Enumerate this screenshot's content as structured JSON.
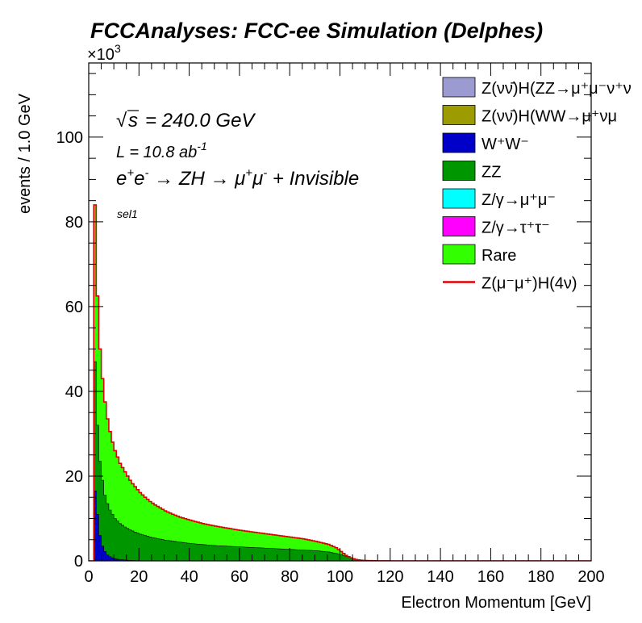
{
  "page": {
    "title": "FCCAnalyses: FCC-ee Simulation (Delphes)"
  },
  "annotations": {
    "sqrt_s": "= 240.0 GeV",
    "lumi": "L = 10.8 ab",
    "lumi_exp": "-1",
    "selection": "sel1",
    "exponent_base": "×10",
    "exponent_power": "3"
  },
  "chart_data": {
    "type": "area",
    "title": "FCCAnalyses: FCC-ee Simulation (Delphes)",
    "xlabel": "Electron Momentum [GeV]",
    "ylabel": "events / 1.0 GeV",
    "xlim": [
      0,
      200
    ],
    "ylim": [
      0,
      117.5
    ],
    "y_unit_multiplier": "×10^3",
    "grid": false,
    "legend_position": "top-right",
    "x_ticks": [
      "0",
      "20",
      "40",
      "60",
      "80",
      "100",
      "120",
      "140",
      "160",
      "180",
      "200"
    ],
    "y_ticks": [
      "0",
      "20",
      "40",
      "60",
      "80",
      "100"
    ],
    "x_tick_values": [
      0,
      20,
      40,
      60,
      80,
      100,
      120,
      140,
      160,
      180,
      200
    ],
    "y_tick_values": [
      0,
      20,
      40,
      60,
      80,
      100
    ],
    "bin_width": 1.0,
    "stack_series": [
      {
        "name": "WW",
        "legend": "W⁺W⁻",
        "color": "#0000c8",
        "points": [
          [
            0,
            0
          ],
          [
            1,
            0
          ],
          [
            2,
            16.5
          ],
          [
            3,
            11
          ],
          [
            4,
            6
          ],
          [
            5,
            3.5
          ],
          [
            6,
            2.2
          ],
          [
            7,
            1.4
          ],
          [
            8,
            1.0
          ],
          [
            9,
            0.7
          ],
          [
            10,
            0.5
          ],
          [
            12,
            0.3
          ],
          [
            15,
            0.15
          ],
          [
            20,
            0.05
          ],
          [
            30,
            0
          ],
          [
            200,
            0
          ]
        ]
      },
      {
        "name": "ZZ",
        "legend": "ZZ",
        "color": "#009600",
        "points": [
          [
            0,
            0
          ],
          [
            1,
            0
          ],
          [
            2,
            47
          ],
          [
            3,
            32
          ],
          [
            4,
            23.5
          ],
          [
            5,
            19
          ],
          [
            6,
            15.5
          ],
          [
            7,
            13.5
          ],
          [
            8,
            12
          ],
          [
            9,
            11
          ],
          [
            10,
            10
          ],
          [
            12,
            8.8
          ],
          [
            14,
            8
          ],
          [
            16,
            7.3
          ],
          [
            18,
            6.8
          ],
          [
            20,
            6.3
          ],
          [
            25,
            5.5
          ],
          [
            30,
            4.9
          ],
          [
            40,
            4.1
          ],
          [
            50,
            3.6
          ],
          [
            60,
            3.3
          ],
          [
            70,
            3.0
          ],
          [
            80,
            2.7
          ],
          [
            90,
            2.4
          ],
          [
            95,
            2.1
          ],
          [
            100,
            1.5
          ],
          [
            105,
            0.5
          ],
          [
            110,
            0.05
          ],
          [
            115,
            0
          ],
          [
            200,
            0
          ]
        ]
      },
      {
        "name": "Rare",
        "legend": "Rare",
        "color": "#32ff00",
        "points": [
          [
            0,
            0
          ],
          [
            1,
            0
          ],
          [
            2,
            84
          ],
          [
            3,
            62.5
          ],
          [
            4,
            50
          ],
          [
            5,
            43
          ],
          [
            6,
            37.5
          ],
          [
            7,
            33.5
          ],
          [
            8,
            30.5
          ],
          [
            9,
            28
          ],
          [
            10,
            26
          ],
          [
            11,
            24.5
          ],
          [
            12,
            23
          ],
          [
            13,
            22
          ],
          [
            14,
            21
          ],
          [
            15,
            20
          ],
          [
            16,
            19
          ],
          [
            17,
            18.2
          ],
          [
            18,
            17.5
          ],
          [
            19,
            16.8
          ],
          [
            20,
            16.1
          ],
          [
            22,
            15.0
          ],
          [
            24,
            14.0
          ],
          [
            26,
            13.2
          ],
          [
            28,
            12.5
          ],
          [
            30,
            11.8
          ],
          [
            33,
            11.0
          ],
          [
            36,
            10.3
          ],
          [
            40,
            9.6
          ],
          [
            45,
            8.8
          ],
          [
            50,
            8.2
          ],
          [
            55,
            7.7
          ],
          [
            60,
            7.2
          ],
          [
            65,
            6.8
          ],
          [
            70,
            6.4
          ],
          [
            75,
            6.0
          ],
          [
            80,
            5.6
          ],
          [
            85,
            5.2
          ],
          [
            90,
            4.6
          ],
          [
            95,
            3.9
          ],
          [
            98,
            3.1
          ],
          [
            100,
            2.2
          ],
          [
            102,
            1.3
          ],
          [
            104,
            0.7
          ],
          [
            106,
            0.3
          ],
          [
            108,
            0.15
          ],
          [
            110,
            0.08
          ],
          [
            115,
            0.02
          ],
          [
            120,
            0
          ],
          [
            200,
            0
          ]
        ]
      }
    ],
    "signal_series": {
      "name": "Z(μ⁻μ⁺)H(4ν)",
      "color": "#e00000"
    },
    "legend_entries": [
      {
        "label": "Z(νν̄)H(ZZ→μ⁺μ⁻ν⁺ν",
        "color": "#9b9bd2",
        "type": "box"
      },
      {
        "label": "Z(νν̄)H(WW→μ⁺νμ",
        "color": "#9c9c00",
        "type": "box"
      },
      {
        "label": "W⁺W⁻",
        "color": "#0000c8",
        "type": "box"
      },
      {
        "label": "ZZ",
        "color": "#009600",
        "type": "box"
      },
      {
        "label": "Z/γ→μ⁺μ⁻",
        "color": "#00ffff",
        "type": "box"
      },
      {
        "label": "Z/γ→τ⁺τ⁻",
        "color": "#ff00ff",
        "type": "box"
      },
      {
        "label": "Rare",
        "color": "#32ff00",
        "type": "box"
      },
      {
        "label": "Z(μ⁻μ⁺)H(4ν)",
        "color": "#e00000",
        "type": "line"
      }
    ]
  }
}
